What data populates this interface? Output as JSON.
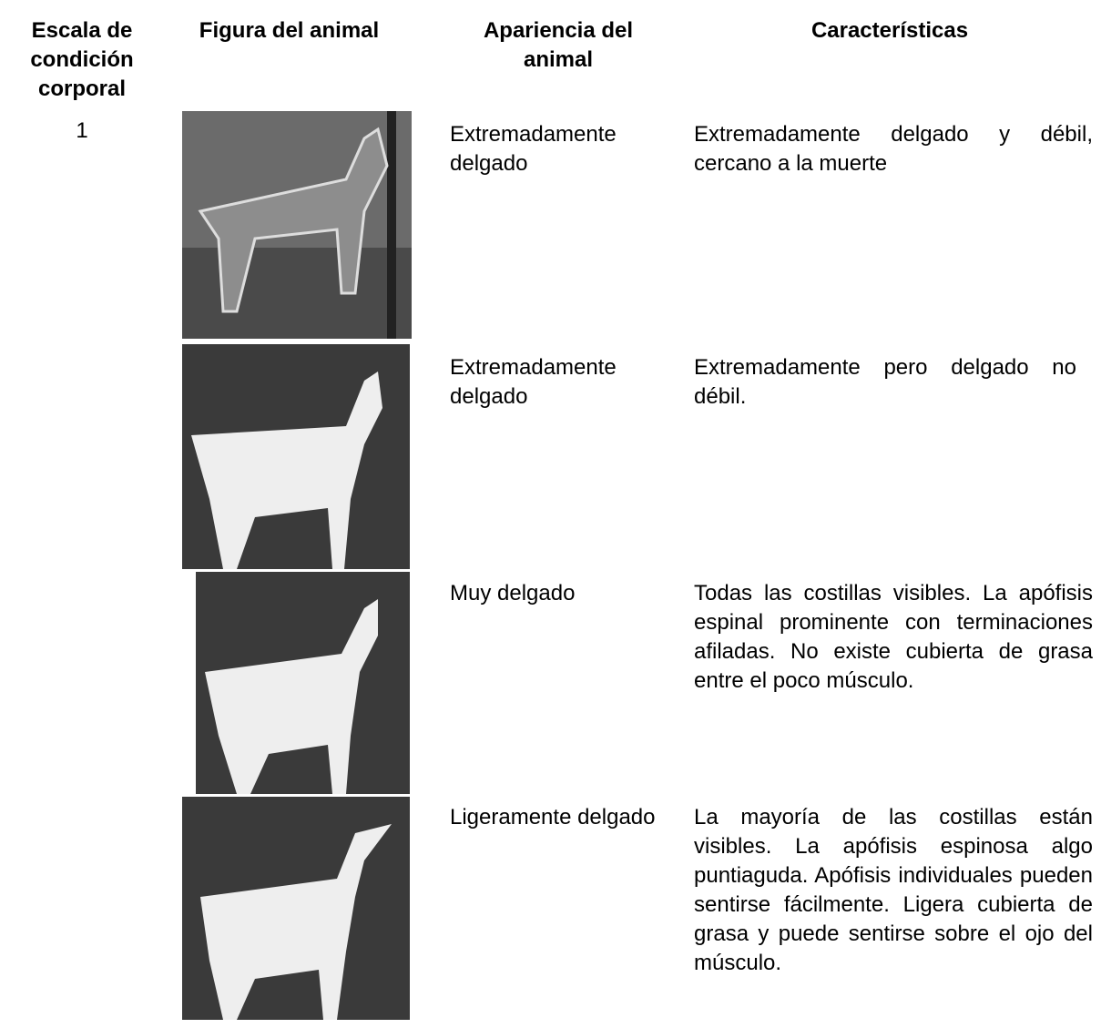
{
  "header": {
    "scale": "Escala de condición corporal",
    "figure": "Figura del animal",
    "appearance": "Apariencia del animal",
    "characteristics": "Características"
  },
  "rows": [
    {
      "scale": "1",
      "appearance": "Extremadamente delgado",
      "characteristics": "Extremadamente delgado y débil, cercano a la muerte"
    },
    {
      "appearance": "Extremadamente delgado",
      "characteristics": "Extremadamente pero delgado no débil."
    },
    {
      "appearance": "Muy delgado",
      "characteristics": "Todas las costillas visibles. La apófisis espinal prominente con terminaciones afiladas. No existe cubierta de grasa entre el poco músculo."
    },
    {
      "appearance": "Ligeramente delgado",
      "characteristics": "La mayoría de las costillas están visibles. La apófisis espinosa algo puntiaguda. Apófisis individuales pueden sentirse fácilmente. Ligera cubierta de grasa y puede sentirse sobre el ojo del músculo."
    }
  ]
}
